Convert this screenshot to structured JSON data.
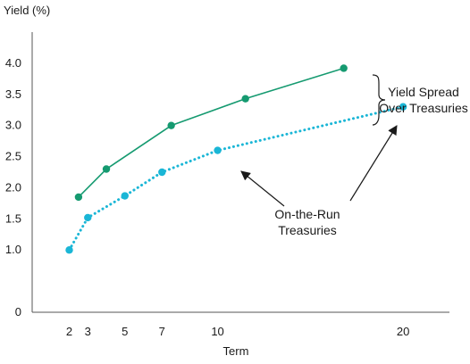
{
  "chart_data": {
    "type": "line",
    "title": "",
    "xlabel": "Term",
    "ylabel": "Yield (%)",
    "x_ticks": [
      2,
      3,
      5,
      7,
      10,
      20
    ],
    "y_ticks": [
      "0",
      "1.0",
      "1.5",
      "2.0",
      "2.5",
      "3.0",
      "3.5",
      "4.0"
    ],
    "y_tick_values": [
      0,
      1.0,
      1.5,
      2.0,
      2.5,
      3.0,
      3.5,
      4.0
    ],
    "xlim": [
      0,
      22.5
    ],
    "ylim": [
      0,
      4.5
    ],
    "grid": false,
    "legend": "none",
    "series": [
      {
        "color": "#159a70",
        "line_style": "solid",
        "points": [
          [
            2.5,
            1.85
          ],
          [
            4.0,
            2.3
          ],
          [
            7.5,
            3.0
          ],
          [
            11.5,
            3.43
          ],
          [
            16.8,
            3.92
          ]
        ]
      },
      {
        "name": "On-the-Run Treasuries",
        "color": "#1ab6d6",
        "line_style": "dotted",
        "points": [
          [
            2,
            1.0
          ],
          [
            3,
            1.52
          ],
          [
            5,
            1.87
          ],
          [
            7,
            2.25
          ],
          [
            10,
            2.6
          ],
          [
            20,
            3.3
          ]
        ]
      }
    ],
    "annotations": [
      {
        "id": "spread",
        "lines": [
          "Yield Spread",
          "Over Treasuries"
        ]
      },
      {
        "id": "otr",
        "lines": [
          "On-the-Run",
          "Treasuries"
        ]
      }
    ]
  }
}
